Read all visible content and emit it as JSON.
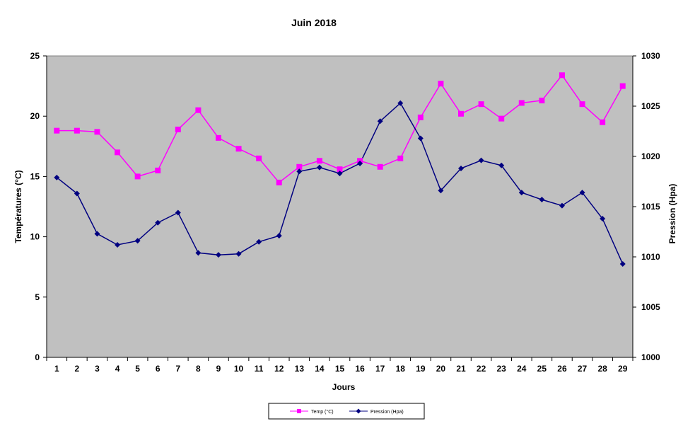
{
  "chart_data": {
    "type": "line",
    "title": "Juin 2018",
    "xlabel": "Jours",
    "ylabel_left": "Températures (°C)",
    "ylabel_right": "Pression (Hpa)",
    "x": [
      1,
      2,
      3,
      4,
      5,
      6,
      7,
      8,
      9,
      10,
      11,
      12,
      13,
      14,
      15,
      16,
      17,
      18,
      19,
      20,
      21,
      22,
      23,
      24,
      25,
      26,
      27,
      28,
      29
    ],
    "ylim_left": [
      0,
      25
    ],
    "ylim_right": [
      1000,
      1030
    ],
    "yticks_left": [
      0,
      5,
      10,
      15,
      20,
      25
    ],
    "yticks_right": [
      1000,
      1005,
      1010,
      1015,
      1020,
      1025,
      1030
    ],
    "grid": false,
    "legend_position": "bottom",
    "plot_background": "#c0c0c0",
    "series": [
      {
        "name": "Temp (°C)",
        "axis": "left",
        "color": "#ff00ff",
        "marker": "square",
        "values": [
          18.8,
          18.8,
          18.7,
          17.0,
          15.0,
          15.5,
          18.9,
          20.5,
          18.2,
          17.3,
          16.5,
          14.5,
          15.8,
          16.3,
          15.6,
          16.3,
          15.8,
          16.5,
          19.9,
          22.7,
          20.2,
          21.0,
          19.8,
          21.1,
          21.3,
          23.4,
          21.0,
          19.5,
          22.5
        ]
      },
      {
        "name": "Pression (Hpa)",
        "axis": "right",
        "color": "#000080",
        "marker": "diamond",
        "values": [
          1017.9,
          1016.3,
          1012.3,
          1011.2,
          1011.6,
          1013.4,
          1014.4,
          1010.4,
          1010.2,
          1010.3,
          1011.5,
          1012.1,
          1018.5,
          1018.9,
          1018.3,
          1019.3,
          1023.5,
          1025.3,
          1021.8,
          1016.6,
          1018.8,
          1019.6,
          1019.1,
          1016.4,
          1015.7,
          1015.1,
          1016.4,
          1013.8,
          1009.3
        ]
      }
    ]
  }
}
